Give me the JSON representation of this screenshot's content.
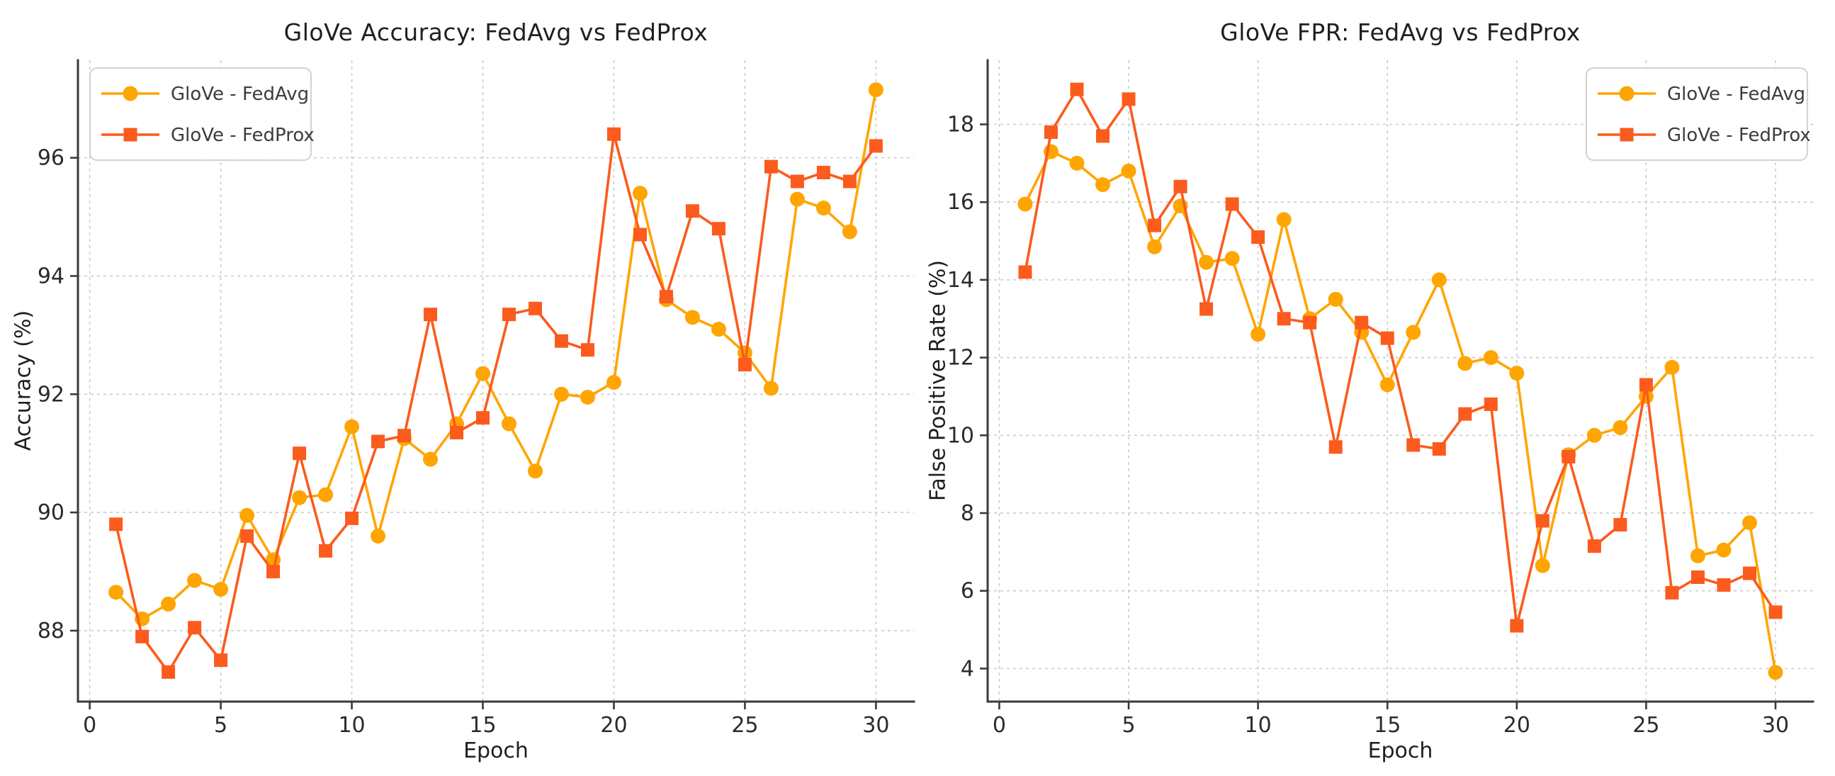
{
  "figure": {
    "background": "#ffffff",
    "text_color": "#1f1f1f",
    "tick_label_color": "#2b2b2b",
    "grid_color": "#cccccc",
    "spine_color": "#3a3a3a",
    "legend_border_color": "#d2d2d2",
    "fedavg_color": "#FFA502",
    "fedprox_color": "#FB5B1D"
  },
  "chart_data": [
    {
      "id": "accuracy",
      "type": "line",
      "title": "GloVe Accuracy: FedAvg vs FedProx",
      "xlabel": "Epoch",
      "ylabel": "Accuracy (%)",
      "x": [
        1,
        2,
        3,
        4,
        5,
        6,
        7,
        8,
        9,
        10,
        11,
        12,
        13,
        14,
        15,
        16,
        17,
        18,
        19,
        20,
        21,
        22,
        23,
        24,
        25,
        26,
        27,
        28,
        29,
        30
      ],
      "xlim": [
        -0.45,
        31.45
      ],
      "ylim": [
        86.8,
        97.65
      ],
      "xticks": [
        0,
        5,
        10,
        15,
        20,
        25,
        30
      ],
      "yticks": [
        88,
        90,
        92,
        94,
        96
      ],
      "grid": true,
      "legend_loc": "upper-left",
      "series": [
        {
          "name": "GloVe - FedAvg",
          "color": "#FFA502",
          "marker": "circle",
          "values": [
            88.65,
            88.2,
            88.45,
            88.85,
            88.7,
            89.95,
            89.2,
            90.25,
            90.3,
            91.45,
            89.6,
            91.25,
            90.9,
            91.5,
            92.35,
            91.5,
            90.7,
            92.0,
            91.95,
            92.2,
            95.4,
            93.6,
            93.3,
            93.1,
            92.7,
            92.1,
            95.3,
            95.15,
            94.75,
            97.15
          ]
        },
        {
          "name": "GloVe - FedProx",
          "color": "#FB5B1D",
          "marker": "square",
          "values": [
            89.8,
            87.9,
            87.3,
            88.05,
            87.5,
            89.6,
            89.0,
            91.0,
            89.35,
            89.9,
            91.2,
            91.3,
            93.35,
            91.35,
            91.6,
            93.35,
            93.45,
            92.9,
            92.75,
            96.4,
            94.7,
            93.65,
            95.1,
            94.8,
            92.5,
            95.85,
            95.6,
            95.75,
            95.6,
            96.2
          ]
        }
      ]
    },
    {
      "id": "fpr",
      "type": "line",
      "title": "GloVe FPR: FedAvg vs FedProx",
      "xlabel": "Epoch",
      "ylabel": "False Positive Rate (%)",
      "x": [
        1,
        2,
        3,
        4,
        5,
        6,
        7,
        8,
        9,
        10,
        11,
        12,
        13,
        14,
        15,
        16,
        17,
        18,
        19,
        20,
        21,
        22,
        23,
        24,
        25,
        26,
        27,
        28,
        29,
        30
      ],
      "xlim": [
        -0.45,
        31.45
      ],
      "ylim": [
        3.15,
        19.65
      ],
      "xticks": [
        0,
        5,
        10,
        15,
        20,
        25,
        30
      ],
      "yticks": [
        4,
        6,
        8,
        10,
        12,
        14,
        16,
        18
      ],
      "grid": true,
      "legend_loc": "upper-right",
      "series": [
        {
          "name": "GloVe - FedAvg",
          "color": "#FFA502",
          "marker": "circle",
          "values": [
            15.95,
            17.3,
            17.0,
            16.45,
            16.8,
            14.85,
            15.9,
            14.45,
            14.55,
            12.6,
            15.55,
            13.0,
            13.5,
            12.65,
            11.3,
            12.65,
            14.0,
            11.85,
            12.0,
            11.6,
            6.65,
            9.5,
            10.0,
            10.2,
            11.0,
            11.75,
            6.9,
            7.05,
            7.75,
            3.9
          ]
        },
        {
          "name": "GloVe - FedProx",
          "color": "#FB5B1D",
          "marker": "square",
          "values": [
            14.2,
            17.8,
            18.9,
            17.7,
            18.65,
            15.4,
            16.4,
            13.25,
            15.95,
            15.1,
            13.0,
            12.9,
            9.7,
            12.9,
            12.5,
            9.75,
            9.65,
            10.55,
            10.8,
            5.1,
            7.8,
            9.45,
            7.15,
            7.7,
            11.3,
            5.95,
            6.35,
            6.15,
            6.45,
            5.45
          ]
        }
      ]
    }
  ]
}
